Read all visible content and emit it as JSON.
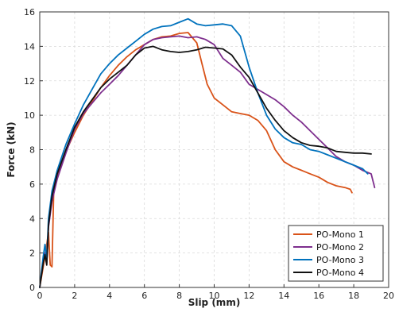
{
  "chart_data": {
    "type": "line",
    "title": "",
    "xlabel": "Slip (mm)",
    "ylabel": "Force (kN)",
    "xlim": [
      0,
      20
    ],
    "ylim": [
      0,
      16
    ],
    "xticks": [
      0,
      2,
      4,
      6,
      8,
      10,
      12,
      14,
      16,
      18,
      20
    ],
    "yticks": [
      0,
      2,
      4,
      6,
      8,
      10,
      12,
      14,
      16
    ],
    "grid": true,
    "legend_position": "bottom-right",
    "series": [
      {
        "name": "PO-Mono 1",
        "color": "#D95319",
        "points": [
          [
            0,
            0
          ],
          [
            0.1,
            0.6
          ],
          [
            0.2,
            1.2
          ],
          [
            0.3,
            1.8
          ],
          [
            0.4,
            2.5
          ],
          [
            0.5,
            3.2
          ],
          [
            0.6,
            1.3
          ],
          [
            0.7,
            1.2
          ],
          [
            0.8,
            5.6
          ],
          [
            1.0,
            6.4
          ],
          [
            1.5,
            7.9
          ],
          [
            2.0,
            9.0
          ],
          [
            2.5,
            10.0
          ],
          [
            3.0,
            10.8
          ],
          [
            3.5,
            11.6
          ],
          [
            4.0,
            12.3
          ],
          [
            4.5,
            12.9
          ],
          [
            5.0,
            13.4
          ],
          [
            5.5,
            13.8
          ],
          [
            6.0,
            14.1
          ],
          [
            6.5,
            14.4
          ],
          [
            7.0,
            14.55
          ],
          [
            7.5,
            14.6
          ],
          [
            8.0,
            14.75
          ],
          [
            8.5,
            14.8
          ],
          [
            9.0,
            14.2
          ],
          [
            9.3,
            13.0
          ],
          [
            9.6,
            11.8
          ],
          [
            10.0,
            11.0
          ],
          [
            10.5,
            10.6
          ],
          [
            11.0,
            10.2
          ],
          [
            11.5,
            10.1
          ],
          [
            12.0,
            10.0
          ],
          [
            12.5,
            9.7
          ],
          [
            13.0,
            9.1
          ],
          [
            13.5,
            8.0
          ],
          [
            14.0,
            7.3
          ],
          [
            14.5,
            7.0
          ],
          [
            15.0,
            6.8
          ],
          [
            15.5,
            6.6
          ],
          [
            16.0,
            6.4
          ],
          [
            16.5,
            6.1
          ],
          [
            17.0,
            5.9
          ],
          [
            17.5,
            5.8
          ],
          [
            17.8,
            5.7
          ],
          [
            17.9,
            5.5
          ]
        ]
      },
      {
        "name": "PO-Mono 2",
        "color": "#7E2F8E",
        "points": [
          [
            0,
            0
          ],
          [
            0.1,
            0.8
          ],
          [
            0.2,
            1.5
          ],
          [
            0.3,
            2.0
          ],
          [
            0.4,
            1.4
          ],
          [
            0.5,
            3.5
          ],
          [
            0.7,
            5.0
          ],
          [
            1.0,
            6.3
          ],
          [
            1.5,
            7.8
          ],
          [
            2.0,
            9.2
          ],
          [
            2.5,
            10.1
          ],
          [
            3.0,
            10.7
          ],
          [
            3.5,
            11.3
          ],
          [
            4.0,
            11.8
          ],
          [
            4.5,
            12.3
          ],
          [
            5.0,
            12.9
          ],
          [
            5.5,
            13.5
          ],
          [
            6.0,
            14.1
          ],
          [
            6.5,
            14.4
          ],
          [
            7.0,
            14.5
          ],
          [
            7.5,
            14.55
          ],
          [
            8.0,
            14.6
          ],
          [
            8.5,
            14.5
          ],
          [
            9.0,
            14.55
          ],
          [
            9.5,
            14.4
          ],
          [
            10.0,
            14.1
          ],
          [
            10.5,
            13.3
          ],
          [
            11.0,
            12.9
          ],
          [
            11.5,
            12.5
          ],
          [
            12.0,
            11.8
          ],
          [
            12.5,
            11.5
          ],
          [
            13.0,
            11.2
          ],
          [
            13.5,
            10.9
          ],
          [
            14.0,
            10.5
          ],
          [
            14.5,
            10.0
          ],
          [
            15.0,
            9.6
          ],
          [
            15.5,
            9.1
          ],
          [
            16.0,
            8.6
          ],
          [
            16.5,
            8.1
          ],
          [
            17.0,
            7.6
          ],
          [
            17.5,
            7.3
          ],
          [
            18.0,
            7.1
          ],
          [
            18.5,
            6.8
          ],
          [
            19.0,
            6.6
          ],
          [
            19.2,
            5.8
          ]
        ]
      },
      {
        "name": "PO-Mono 3",
        "color": "#0072BD",
        "points": [
          [
            0,
            0
          ],
          [
            0.1,
            0.9
          ],
          [
            0.2,
            1.8
          ],
          [
            0.3,
            2.5
          ],
          [
            0.4,
            1.6
          ],
          [
            0.5,
            4.0
          ],
          [
            0.7,
            5.6
          ],
          [
            1.0,
            6.8
          ],
          [
            1.5,
            8.3
          ],
          [
            2.0,
            9.5
          ],
          [
            2.5,
            10.6
          ],
          [
            3.0,
            11.5
          ],
          [
            3.5,
            12.4
          ],
          [
            4.0,
            13.0
          ],
          [
            4.5,
            13.5
          ],
          [
            5.0,
            13.9
          ],
          [
            5.5,
            14.3
          ],
          [
            6.0,
            14.7
          ],
          [
            6.5,
            15.0
          ],
          [
            7.0,
            15.15
          ],
          [
            7.5,
            15.2
          ],
          [
            8.0,
            15.4
          ],
          [
            8.5,
            15.6
          ],
          [
            9.0,
            15.3
          ],
          [
            9.5,
            15.2
          ],
          [
            10.0,
            15.25
          ],
          [
            10.5,
            15.3
          ],
          [
            11.0,
            15.2
          ],
          [
            11.5,
            14.6
          ],
          [
            12.0,
            12.8
          ],
          [
            12.5,
            11.3
          ],
          [
            13.0,
            10.0
          ],
          [
            13.5,
            9.2
          ],
          [
            14.0,
            8.7
          ],
          [
            14.5,
            8.4
          ],
          [
            15.0,
            8.3
          ],
          [
            15.5,
            8.0
          ],
          [
            16.0,
            7.9
          ],
          [
            16.5,
            7.7
          ],
          [
            17.0,
            7.5
          ],
          [
            17.5,
            7.3
          ],
          [
            18.0,
            7.1
          ],
          [
            18.5,
            6.9
          ],
          [
            18.8,
            6.6
          ]
        ]
      },
      {
        "name": "PO-Mono 4",
        "color": "#111111",
        "points": [
          [
            0,
            0
          ],
          [
            0.1,
            0.7
          ],
          [
            0.2,
            1.4
          ],
          [
            0.3,
            1.9
          ],
          [
            0.4,
            1.3
          ],
          [
            0.5,
            3.6
          ],
          [
            0.7,
            5.3
          ],
          [
            1.0,
            6.6
          ],
          [
            1.5,
            8.0
          ],
          [
            2.0,
            9.3
          ],
          [
            2.5,
            10.2
          ],
          [
            3.0,
            10.9
          ],
          [
            3.5,
            11.6
          ],
          [
            4.0,
            12.1
          ],
          [
            4.5,
            12.5
          ],
          [
            5.0,
            12.9
          ],
          [
            5.5,
            13.5
          ],
          [
            6.0,
            13.9
          ],
          [
            6.5,
            14.0
          ],
          [
            7.0,
            13.8
          ],
          [
            7.5,
            13.7
          ],
          [
            8.0,
            13.65
          ],
          [
            8.5,
            13.7
          ],
          [
            9.0,
            13.8
          ],
          [
            9.5,
            13.95
          ],
          [
            10.0,
            13.9
          ],
          [
            10.5,
            13.85
          ],
          [
            11.0,
            13.5
          ],
          [
            11.5,
            12.8
          ],
          [
            12.0,
            12.2
          ],
          [
            12.5,
            11.3
          ],
          [
            13.0,
            10.4
          ],
          [
            13.5,
            9.7
          ],
          [
            14.0,
            9.1
          ],
          [
            14.5,
            8.7
          ],
          [
            15.0,
            8.4
          ],
          [
            15.5,
            8.25
          ],
          [
            16.0,
            8.2
          ],
          [
            16.5,
            8.1
          ],
          [
            17.0,
            7.9
          ],
          [
            17.5,
            7.85
          ],
          [
            18.0,
            7.8
          ],
          [
            18.5,
            7.8
          ],
          [
            19.0,
            7.75
          ]
        ]
      }
    ]
  }
}
